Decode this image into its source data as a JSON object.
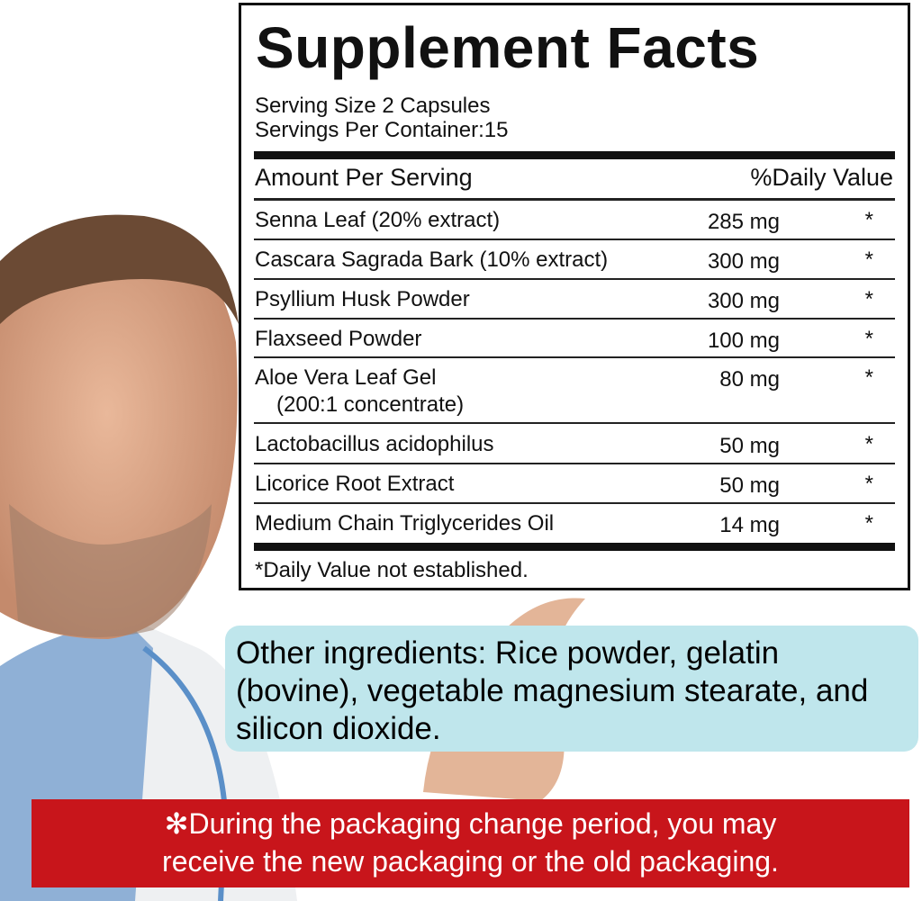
{
  "label": {
    "title": "Supplement Facts",
    "serving_size": "Serving Size 2 Capsules",
    "servings_per_container": "Servings Per Container:15",
    "header_left": "Amount Per Serving",
    "header_right": "%Daily Value",
    "rows": [
      {
        "name": "Senna Leaf (20% extract)",
        "amount": "285 mg",
        "dv": "*"
      },
      {
        "name": "Cascara Sagrada Bark (10% extract)",
        "amount": "300 mg",
        "dv": "*"
      },
      {
        "name": "Psyllium Husk Powder",
        "amount": "300 mg",
        "dv": "*"
      },
      {
        "name": "Flaxseed Powder",
        "amount": "100 mg",
        "dv": "*"
      },
      {
        "name": "Aloe Vera Leaf Gel",
        "sub": "(200:1 concentrate)",
        "amount": "80 mg",
        "dv": "*"
      },
      {
        "name": "Lactobacillus acidophilus",
        "amount": "50 mg",
        "dv": "*"
      },
      {
        "name": "Licorice Root Extract",
        "amount": "50 mg",
        "dv": "*"
      },
      {
        "name": "Medium Chain Triglycerides Oil",
        "amount": "14 mg",
        "dv": "*"
      }
    ],
    "footnote": "*Daily Value not established."
  },
  "other_ingredients": "Other ingredients: Rice powder, gelatin (bovine), vegetable magnesium stearate, and silicon dioxide.",
  "notice": {
    "icon": "asterisk-icon",
    "line1": "During the packaging change period, you may",
    "line2": "receive the new packaging or the old packaging."
  },
  "colors": {
    "notice_bg": "#c8151b",
    "ingredients_bg": "#bfe6ec"
  }
}
